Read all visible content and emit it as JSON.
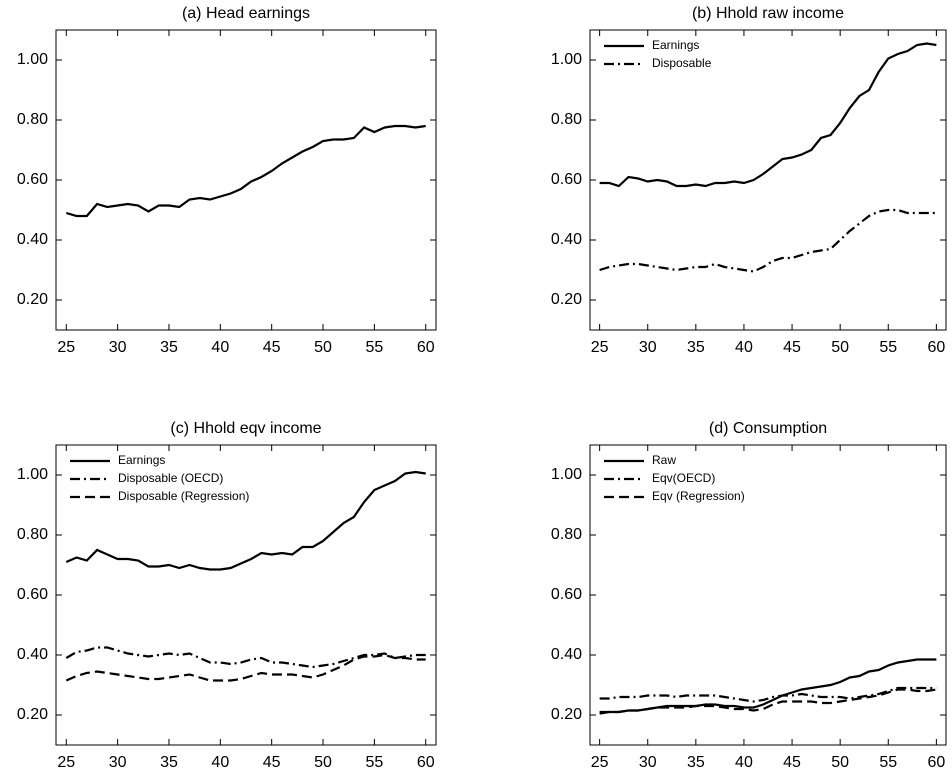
{
  "chart_data": [
    {
      "type": "line",
      "title": "(a) Head earnings",
      "x": [
        25,
        26,
        27,
        28,
        29,
        30,
        31,
        32,
        33,
        34,
        35,
        36,
        37,
        38,
        39,
        40,
        41,
        42,
        43,
        44,
        45,
        46,
        47,
        48,
        49,
        50,
        51,
        52,
        53,
        54,
        55,
        56,
        57,
        58,
        59,
        60
      ],
      "values": [
        0.49,
        0.48,
        0.48,
        0.52,
        0.51,
        0.515,
        0.52,
        0.515,
        0.495,
        0.515,
        0.515,
        0.51,
        0.535,
        0.54,
        0.535,
        0.545,
        0.555,
        0.57,
        0.595,
        0.61,
        0.63,
        0.655,
        0.675,
        0.695,
        0.71,
        0.73,
        0.735,
        0.735,
        0.74,
        0.775,
        0.76,
        0.775,
        0.78,
        0.78,
        0.775,
        0.78
      ],
      "color": "#000000",
      "dash": "solid",
      "xlim": [
        24,
        61
      ],
      "xticks": [
        25,
        30,
        35,
        40,
        45,
        50,
        55,
        60
      ],
      "ylim": [
        0.1,
        1.1
      ],
      "yticks": [
        {
          "value": 0.2,
          "label": "0.20"
        },
        {
          "value": 0.4,
          "label": "0.40"
        },
        {
          "value": 0.6,
          "label": "0.60"
        },
        {
          "value": 0.8,
          "label": "0.80"
        },
        {
          "value": 1.0,
          "label": "1.00"
        }
      ]
    },
    {
      "type": "line",
      "title": "(b) Hhold raw income",
      "legend": "upper left",
      "x": [
        25,
        26,
        27,
        28,
        29,
        30,
        31,
        32,
        33,
        34,
        35,
        36,
        37,
        38,
        39,
        40,
        41,
        42,
        43,
        44,
        45,
        46,
        47,
        48,
        49,
        50,
        51,
        52,
        53,
        54,
        55,
        56,
        57,
        58,
        59,
        60
      ],
      "series": [
        {
          "name": "Earnings",
          "color": "#000000",
          "dash": "solid",
          "values": [
            0.59,
            0.59,
            0.58,
            0.61,
            0.605,
            0.595,
            0.6,
            0.595,
            0.58,
            0.58,
            0.585,
            0.58,
            0.59,
            0.59,
            0.595,
            0.59,
            0.6,
            0.62,
            0.645,
            0.67,
            0.675,
            0.685,
            0.7,
            0.74,
            0.75,
            0.79,
            0.84,
            0.88,
            0.9,
            0.96,
            1.005,
            1.02,
            1.03,
            1.05,
            1.055,
            1.05
          ]
        },
        {
          "name": "Disposable",
          "color": "#000000",
          "dash": "dashdot",
          "values": [
            0.3,
            0.31,
            0.315,
            0.32,
            0.32,
            0.315,
            0.31,
            0.305,
            0.3,
            0.305,
            0.31,
            0.31,
            0.32,
            0.31,
            0.305,
            0.3,
            0.295,
            0.31,
            0.33,
            0.34,
            0.34,
            0.35,
            0.36,
            0.365,
            0.37,
            0.4,
            0.43,
            0.455,
            0.48,
            0.495,
            0.5,
            0.5,
            0.49,
            0.49,
            0.49,
            0.49
          ]
        }
      ],
      "xlim": [
        24,
        61
      ],
      "xticks": [
        25,
        30,
        35,
        40,
        45,
        50,
        55,
        60
      ],
      "ylim": [
        0.1,
        1.1
      ],
      "yticks": [
        {
          "value": 0.2,
          "label": "0.20"
        },
        {
          "value": 0.4,
          "label": "0.40"
        },
        {
          "value": 0.6,
          "label": "0.60"
        },
        {
          "value": 0.8,
          "label": "0.80"
        },
        {
          "value": 1.0,
          "label": "1.00"
        }
      ]
    },
    {
      "type": "line",
      "title": "(c) Hhold eqv income",
      "legend": "upper left",
      "x": [
        25,
        26,
        27,
        28,
        29,
        30,
        31,
        32,
        33,
        34,
        35,
        36,
        37,
        38,
        39,
        40,
        41,
        42,
        43,
        44,
        45,
        46,
        47,
        48,
        49,
        50,
        51,
        52,
        53,
        54,
        55,
        56,
        57,
        58,
        59,
        60
      ],
      "series": [
        {
          "name": "Earnings",
          "color": "#000000",
          "dash": "solid",
          "values": [
            0.71,
            0.725,
            0.715,
            0.75,
            0.735,
            0.72,
            0.72,
            0.715,
            0.695,
            0.695,
            0.7,
            0.69,
            0.7,
            0.69,
            0.685,
            0.685,
            0.69,
            0.705,
            0.72,
            0.74,
            0.735,
            0.74,
            0.735,
            0.76,
            0.76,
            0.78,
            0.81,
            0.84,
            0.86,
            0.91,
            0.95,
            0.965,
            0.98,
            1.005,
            1.01,
            1.005
          ]
        },
        {
          "name": "Disposable (OECD)",
          "color": "#000000",
          "dash": "dashdot",
          "values": [
            0.39,
            0.41,
            0.415,
            0.425,
            0.425,
            0.415,
            0.405,
            0.4,
            0.395,
            0.4,
            0.405,
            0.4,
            0.405,
            0.39,
            0.375,
            0.375,
            0.37,
            0.375,
            0.385,
            0.39,
            0.375,
            0.375,
            0.37,
            0.365,
            0.36,
            0.365,
            0.37,
            0.38,
            0.39,
            0.4,
            0.4,
            0.405,
            0.39,
            0.395,
            0.4,
            0.4
          ]
        },
        {
          "name": "Disposable (Regression)",
          "color": "#000000",
          "dash": "dashed",
          "values": [
            0.315,
            0.33,
            0.34,
            0.345,
            0.34,
            0.335,
            0.33,
            0.325,
            0.32,
            0.32,
            0.325,
            0.33,
            0.335,
            0.325,
            0.315,
            0.315,
            0.315,
            0.32,
            0.33,
            0.34,
            0.335,
            0.335,
            0.335,
            0.33,
            0.325,
            0.335,
            0.35,
            0.365,
            0.385,
            0.395,
            0.395,
            0.4,
            0.39,
            0.39,
            0.385,
            0.385
          ]
        }
      ],
      "xlim": [
        24,
        61
      ],
      "xticks": [
        25,
        30,
        35,
        40,
        45,
        50,
        55,
        60
      ],
      "ylim": [
        0.1,
        1.1
      ],
      "yticks": [
        {
          "value": 0.2,
          "label": "0.20"
        },
        {
          "value": 0.4,
          "label": "0.40"
        },
        {
          "value": 0.6,
          "label": "0.60"
        },
        {
          "value": 0.8,
          "label": "0.80"
        },
        {
          "value": 1.0,
          "label": "1.00"
        }
      ]
    },
    {
      "type": "line",
      "title": "(d) Consumption",
      "legend": "upper left",
      "x": [
        25,
        26,
        27,
        28,
        29,
        30,
        31,
        32,
        33,
        34,
        35,
        36,
        37,
        38,
        39,
        40,
        41,
        42,
        43,
        44,
        45,
        46,
        47,
        48,
        49,
        50,
        51,
        52,
        53,
        54,
        55,
        56,
        57,
        58,
        59,
        60
      ],
      "series": [
        {
          "name": "Raw",
          "color": "#000000",
          "dash": "solid",
          "values": [
            0.21,
            0.21,
            0.21,
            0.215,
            0.215,
            0.22,
            0.225,
            0.23,
            0.23,
            0.23,
            0.23,
            0.235,
            0.235,
            0.23,
            0.23,
            0.225,
            0.225,
            0.235,
            0.25,
            0.265,
            0.275,
            0.285,
            0.29,
            0.295,
            0.3,
            0.31,
            0.325,
            0.33,
            0.345,
            0.35,
            0.365,
            0.375,
            0.38,
            0.385,
            0.385,
            0.385
          ]
        },
        {
          "name": "Eqv(OECD)",
          "color": "#000000",
          "dash": "dashdot",
          "values": [
            0.255,
            0.255,
            0.26,
            0.26,
            0.26,
            0.265,
            0.265,
            0.265,
            0.26,
            0.265,
            0.265,
            0.265,
            0.265,
            0.26,
            0.255,
            0.25,
            0.245,
            0.25,
            0.26,
            0.265,
            0.265,
            0.27,
            0.265,
            0.26,
            0.26,
            0.26,
            0.255,
            0.26,
            0.265,
            0.27,
            0.28,
            0.29,
            0.29,
            0.29,
            0.29,
            0.29
          ]
        },
        {
          "name": "Eqv (Regression)",
          "color": "#000000",
          "dash": "dashed",
          "values": [
            0.205,
            0.21,
            0.21,
            0.215,
            0.215,
            0.22,
            0.225,
            0.225,
            0.225,
            0.225,
            0.23,
            0.23,
            0.23,
            0.225,
            0.22,
            0.22,
            0.215,
            0.22,
            0.235,
            0.245,
            0.245,
            0.245,
            0.245,
            0.24,
            0.24,
            0.245,
            0.25,
            0.255,
            0.26,
            0.265,
            0.275,
            0.285,
            0.285,
            0.28,
            0.28,
            0.285
          ]
        }
      ],
      "xlim": [
        24,
        61
      ],
      "xticks": [
        25,
        30,
        35,
        40,
        45,
        50,
        55,
        60
      ],
      "ylim": [
        0.1,
        1.1
      ],
      "yticks": [
        {
          "value": 0.2,
          "label": "0.20"
        },
        {
          "value": 0.4,
          "label": "0.40"
        },
        {
          "value": 0.6,
          "label": "0.60"
        },
        {
          "value": 0.8,
          "label": "0.80"
        },
        {
          "value": 1.0,
          "label": "1.00"
        }
      ]
    }
  ]
}
